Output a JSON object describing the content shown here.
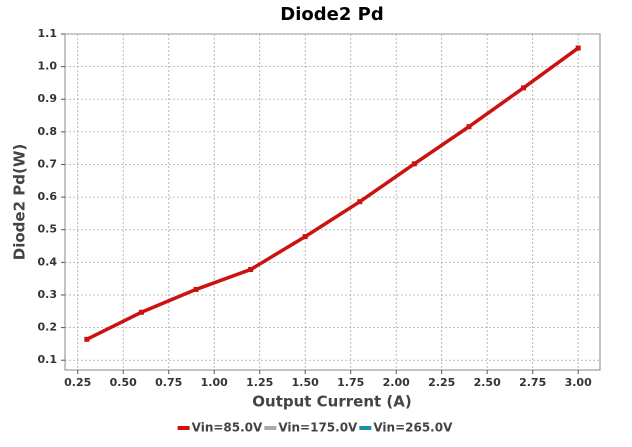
{
  "chart_data": {
    "type": "line",
    "title": "Diode2 Pd",
    "xlabel": "Output Current (A)",
    "ylabel": "Diode2 Pd(W)",
    "x": [
      0.3,
      0.6,
      0.9,
      1.2,
      1.5,
      1.8,
      2.1,
      2.4,
      2.7,
      3.0
    ],
    "series": [
      {
        "name": "Vin=85.0V",
        "color": "#cc1111",
        "values": [
          0.164,
          0.247,
          0.317,
          0.378,
          0.479,
          0.586,
          0.702,
          0.816,
          0.935,
          1.057
        ]
      },
      {
        "name": "Vin=175.0V",
        "color": "#aaaaaa",
        "values": [
          null,
          null,
          null,
          null,
          null,
          null,
          null,
          null,
          null,
          null
        ]
      },
      {
        "name": "Vin=265.0V",
        "color": "#1a8fa8",
        "values": [
          null,
          null,
          null,
          null,
          null,
          null,
          null,
          null,
          null,
          null
        ]
      }
    ],
    "xlim": [
      0.18,
      3.12
    ],
    "xticks": [
      0.25,
      {
        "value": 0.5,
        "label": "0.50"
      },
      0.75,
      {
        "value": 1,
        "label": "1.00"
      },
      1.25,
      {
        "value": 1.5,
        "label": "1.50"
      },
      1.75,
      {
        "value": 2,
        "label": "2.00"
      },
      2.25,
      {
        "value": 2.5,
        "label": "2.50"
      },
      2.75,
      {
        "value": 3,
        "label": "3.00"
      }
    ],
    "ylim": [
      0.07,
      1.1
    ],
    "yticks": [
      0.1,
      0.2,
      0.3,
      0.4,
      0.5,
      0.6,
      0.7,
      0.8,
      0.9,
      {
        "value": 1,
        "label": "1.0"
      },
      1.1
    ],
    "grid": true,
    "legend": "bottom"
  }
}
